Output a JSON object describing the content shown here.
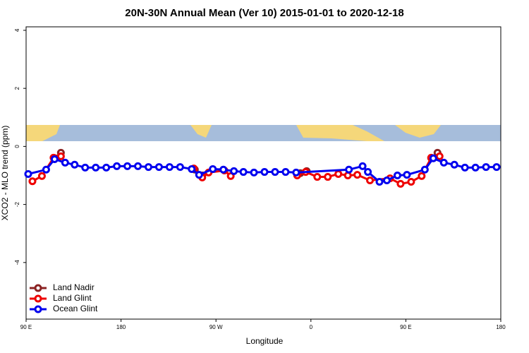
{
  "chart_data": {
    "type": "line",
    "title": "20N-30N Annual Mean (Ver 10)   2015-01-01 to 2020-12-18",
    "x_label": "Longitude",
    "y_label": "XCO2 - MLO trend (ppm)",
    "xlim": [
      90,
      540
    ],
    "ylim": [
      -5.95,
      4.12
    ],
    "xticks": [
      {
        "value": 90,
        "label": "90 E"
      },
      {
        "value": 180,
        "label": "180"
      },
      {
        "value": 270,
        "label": "90 W"
      },
      {
        "value": 360,
        "label": "0"
      },
      {
        "value": 450,
        "label": "90 E"
      },
      {
        "value": 540,
        "label": "180"
      }
    ],
    "yticks": [
      -4,
      -2,
      0,
      2,
      4
    ],
    "legend": "bottom-left",
    "series": [
      {
        "name": "Land Nadir",
        "color": "#8b2323",
        "x": [
          117,
          123,
          190,
          250,
          257,
          300,
          350,
          356,
          420,
          474,
          480
        ],
        "values": [
          -0.4,
          -0.22,
          null,
          -0.8,
          -1.0,
          null,
          -0.92,
          -0.85,
          null,
          -0.4,
          -0.22
        ]
      },
      {
        "name": "Land Glint",
        "color": "#ee0000",
        "x": [
          96,
          105,
          116,
          123,
          190,
          249,
          257,
          263,
          278,
          284,
          300,
          347,
          355,
          366,
          376,
          386,
          395,
          404,
          416,
          435,
          445,
          455,
          465,
          474,
          482
        ],
        "values": [
          -1.2,
          -1.02,
          -0.39,
          -0.34,
          null,
          -0.76,
          -1.07,
          -0.9,
          -0.83,
          -1.02,
          null,
          -1.0,
          -0.88,
          -1.05,
          -1.05,
          -0.95,
          -1.0,
          -0.98,
          -1.17,
          -1.1,
          -1.29,
          -1.22,
          -1.02,
          -0.39,
          -0.34
        ]
      },
      {
        "name": "Ocean Glint",
        "color": "#0000ee",
        "x": [
          92,
          109,
          117,
          127,
          136,
          146,
          156,
          166,
          176,
          186,
          196,
          206,
          216,
          226,
          236,
          247,
          254,
          267,
          277,
          287,
          296,
          306,
          316,
          326,
          336,
          346,
          396,
          409,
          414,
          425,
          432,
          442,
          451,
          468,
          476,
          486,
          496,
          506,
          516,
          526,
          536
        ],
        "values": [
          -0.95,
          -0.8,
          -0.44,
          -0.56,
          -0.63,
          -0.73,
          -0.73,
          -0.73,
          -0.68,
          -0.68,
          -0.68,
          -0.71,
          -0.71,
          -0.71,
          -0.71,
          -0.78,
          -0.98,
          -0.78,
          -0.8,
          -0.85,
          -0.88,
          -0.9,
          -0.88,
          -0.88,
          -0.88,
          -0.9,
          -0.8,
          -0.68,
          -0.88,
          -1.22,
          -1.17,
          -1.0,
          -0.98,
          -0.8,
          -0.41,
          -0.56,
          -0.63,
          -0.73,
          -0.73,
          -0.71,
          -0.71
        ]
      }
    ]
  }
}
